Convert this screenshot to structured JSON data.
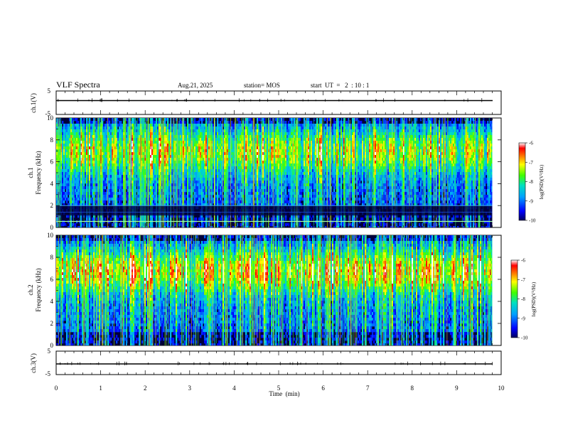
{
  "header": {
    "title": "VLF Spectra",
    "date": "Aug.21, 2025",
    "station": "station= MOS",
    "start": "start  UT  =   2  : 10 : 1"
  },
  "chart_data": [
    {
      "type": "line",
      "name": "ch1-voltage",
      "ylabel": "ch.1(V)",
      "ylim": [
        -5,
        5
      ],
      "yticks": [
        "5",
        "-5"
      ],
      "x": [
        0,
        9.8
      ],
      "values": [
        -1,
        -1
      ],
      "xlim": [
        0,
        10
      ]
    },
    {
      "type": "heatmap",
      "name": "ch1-spectrogram",
      "ylabel": "ch.1\nFrequency (kHz)",
      "ylabel_lines": [
        "ch.1",
        "Frequency (kHz)"
      ],
      "ylim": [
        0,
        10
      ],
      "yticks": [
        "0",
        "2",
        "4",
        "6",
        "8",
        "10"
      ],
      "xlim": [
        0,
        9.8
      ],
      "colorbar": {
        "label": "log(PSD)(V²/Hz)",
        "range": [
          -10,
          -6
        ],
        "ticks": [
          "-6",
          "-7",
          "-8",
          "-9",
          "-10"
        ]
      }
    },
    {
      "type": "heatmap",
      "name": "ch2-spectrogram",
      "ylabel": "ch.2\nFrequency (kHz)",
      "ylabel_lines": [
        "ch.2",
        "Frequency (kHz)"
      ],
      "ylim": [
        0,
        10
      ],
      "yticks": [
        "0",
        "2",
        "4",
        "6",
        "8",
        "10"
      ],
      "xlim": [
        0,
        9.8
      ],
      "colorbar": {
        "label": "log(PSD)(V²/Hz)",
        "range": [
          -10,
          -6
        ],
        "ticks": [
          "-6",
          "-7",
          "-8",
          "-9",
          "-10"
        ]
      }
    },
    {
      "type": "line",
      "name": "ch3-voltage",
      "ylabel": "ch.3(V)",
      "ylim": [
        -5,
        5
      ],
      "yticks": [
        "5",
        "-5"
      ],
      "x": [
        0,
        9.8
      ],
      "values": [
        -1,
        -1
      ],
      "xlim": [
        0,
        10
      ],
      "xlabel": "Time  (min)",
      "xticks": [
        "0",
        "1",
        "2",
        "3",
        "4",
        "5",
        "6",
        "7",
        "8",
        "9",
        "10"
      ]
    }
  ]
}
